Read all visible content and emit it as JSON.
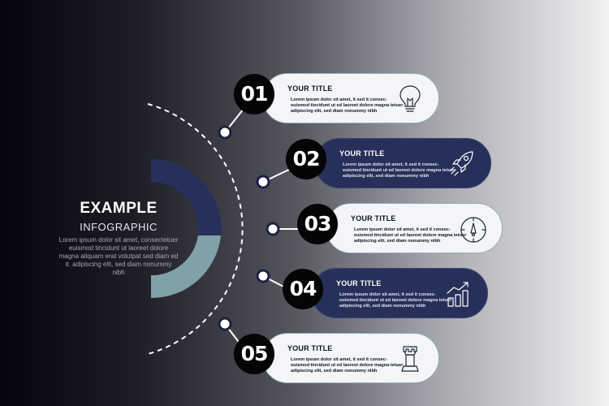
{
  "center": {
    "title": "EXAMPLE",
    "subtitle": "INFOGRAPHIC",
    "body": "Lorem ipsum dolor sit amet, consectetuer euismod tincidunt ut laoreet dolore magna aliquam erat volutpat sed diam ed it. adipiscing elit, sed diam nonummy nibh"
  },
  "colors": {
    "navy": "#27305a",
    "light_card": "#f4f5f9",
    "arc_teal": "#7fa1a7",
    "badge": "#050508"
  },
  "steps": [
    {
      "number": "01",
      "title": "YOUR TITLE",
      "body": "Lorem ipsum dolor sit amet, it sed it consec- euismod tincidunt ut ed laoreet dolore magna tetuer adipiscing elit, sed diam nonummy nibh",
      "theme": "light",
      "icon": "lightbulb-icon"
    },
    {
      "number": "02",
      "title": "YOUR TITLE",
      "body": "Lorem ipsum dolor sit amet, it sed it consec- euismod tincidunt ut ed laoreet dolore magna tetuer adipiscing elit, sed diam nonummy nibh",
      "theme": "dark",
      "icon": "rocket-icon"
    },
    {
      "number": "03",
      "title": "YOUR TITLE",
      "body": "Lorem ipsum dolor sit amet, it sed it consec- euismod tincidunt ut ed laoreet dolore magna tetuer adipiscing elit, sed diam nonummy nibh",
      "theme": "light",
      "icon": "compass-icon"
    },
    {
      "number": "04",
      "title": "YOUR TITLE",
      "body": "Lorem ipsum dolor sit amet, it sed it consec- euismod tincidunt ut ed laoreet dolore magna tetuer adipiscing elit, sed diam nonummy nibh",
      "theme": "dark",
      "icon": "growth-chart-icon"
    },
    {
      "number": "05",
      "title": "YOUR TITLE",
      "body": "Lorem ipsum dolor sit amet, it sed it consec- euismod tincidunt ut ed laoreet dolore magna tetuer adipiscing elit, sed diam nonummy nibh",
      "theme": "light",
      "icon": "chess-rook-icon"
    }
  ]
}
